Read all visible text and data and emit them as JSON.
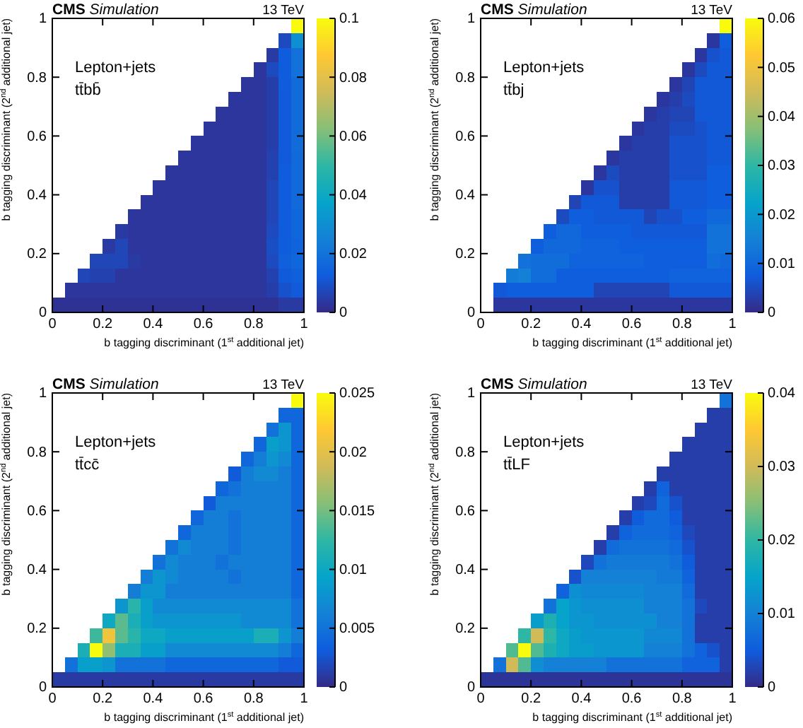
{
  "chart_data": [
    {
      "type": "heatmap",
      "title": "CMS Simulation",
      "annotations": [
        "13 TeV",
        "Lepton+jets",
        "tt̄bb̄"
      ],
      "xlabel": "b tagging discriminant (1$^{st}$ additional jet)",
      "ylabel": "b tagging discriminant (2$^{nd}$ additional jet)",
      "xlim": [
        0,
        1
      ],
      "ylim": [
        0,
        1
      ],
      "xticks": [
        0,
        0.2,
        0.4,
        0.6,
        0.8,
        1
      ],
      "yticks": [
        0,
        0.2,
        0.4,
        0.6,
        0.8,
        1
      ],
      "clim": [
        0,
        0.1
      ],
      "cticks": [
        0,
        0.02,
        0.04,
        0.06,
        0.08,
        0.1
      ],
      "cells": [
        [
          null,
          null,
          null,
          null,
          null,
          null,
          null,
          null,
          null,
          null,
          null,
          null,
          null,
          null,
          null,
          null,
          null,
          null,
          null,
          0.1
        ],
        [
          null,
          null,
          null,
          null,
          null,
          null,
          null,
          null,
          null,
          null,
          null,
          null,
          null,
          null,
          null,
          null,
          null,
          null,
          0.008,
          0.03
        ],
        [
          null,
          null,
          null,
          null,
          null,
          null,
          null,
          null,
          null,
          null,
          null,
          null,
          null,
          null,
          null,
          null,
          null,
          0.004,
          0.013,
          0.02
        ],
        [
          null,
          null,
          null,
          null,
          null,
          null,
          null,
          null,
          null,
          null,
          null,
          null,
          null,
          null,
          null,
          null,
          0.003,
          0.008,
          0.013,
          0.02
        ],
        [
          null,
          null,
          null,
          null,
          null,
          null,
          null,
          null,
          null,
          null,
          null,
          null,
          null,
          null,
          null,
          0.003,
          0.003,
          0.005,
          0.013,
          0.018
        ],
        [
          null,
          null,
          null,
          null,
          null,
          null,
          null,
          null,
          null,
          null,
          null,
          null,
          null,
          null,
          0.003,
          0.003,
          0.003,
          0.005,
          0.012,
          0.018
        ],
        [
          null,
          null,
          null,
          null,
          null,
          null,
          null,
          null,
          null,
          null,
          null,
          null,
          null,
          0.003,
          0.003,
          0.003,
          0.003,
          0.005,
          0.012,
          0.018
        ],
        [
          null,
          null,
          null,
          null,
          null,
          null,
          null,
          null,
          null,
          null,
          null,
          null,
          0.003,
          0.003,
          0.003,
          0.003,
          0.003,
          0.005,
          0.012,
          0.018
        ],
        [
          null,
          null,
          null,
          null,
          null,
          null,
          null,
          null,
          null,
          null,
          null,
          0.003,
          0.003,
          0.003,
          0.003,
          0.003,
          0.003,
          0.005,
          0.012,
          0.018
        ],
        [
          null,
          null,
          null,
          null,
          null,
          null,
          null,
          null,
          null,
          null,
          0.003,
          0.003,
          0.003,
          0.003,
          0.003,
          0.003,
          0.003,
          0.006,
          0.012,
          0.017
        ],
        [
          null,
          null,
          null,
          null,
          null,
          null,
          null,
          null,
          null,
          0.003,
          0.003,
          0.003,
          0.003,
          0.003,
          0.003,
          0.003,
          0.003,
          0.006,
          0.013,
          0.017
        ],
        [
          null,
          null,
          null,
          null,
          null,
          null,
          null,
          null,
          0.003,
          0.003,
          0.003,
          0.003,
          0.003,
          0.003,
          0.003,
          0.003,
          0.003,
          0.007,
          0.013,
          0.017
        ],
        [
          null,
          null,
          null,
          null,
          null,
          null,
          null,
          0.003,
          0.003,
          0.003,
          0.003,
          0.003,
          0.003,
          0.003,
          0.003,
          0.003,
          0.003,
          0.007,
          0.013,
          0.017
        ],
        [
          null,
          null,
          null,
          null,
          null,
          null,
          0.003,
          0.003,
          0.003,
          0.003,
          0.003,
          0.003,
          0.003,
          0.003,
          0.003,
          0.003,
          0.003,
          0.007,
          0.013,
          0.016
        ],
        [
          null,
          null,
          null,
          null,
          null,
          0.004,
          0.003,
          0.003,
          0.003,
          0.003,
          0.003,
          0.003,
          0.003,
          0.003,
          0.003,
          0.003,
          0.003,
          0.008,
          0.013,
          0.016
        ],
        [
          null,
          null,
          null,
          null,
          0.004,
          0.007,
          0.003,
          0.003,
          0.003,
          0.003,
          0.003,
          0.003,
          0.003,
          0.003,
          0.003,
          0.003,
          0.003,
          0.009,
          0.013,
          0.015
        ],
        [
          null,
          null,
          null,
          0.007,
          0.007,
          0.007,
          0.004,
          0.003,
          0.003,
          0.003,
          0.003,
          0.003,
          0.003,
          0.003,
          0.003,
          0.003,
          0.003,
          0.008,
          0.014,
          0.016
        ],
        [
          null,
          null,
          0.007,
          0.006,
          0.006,
          0.003,
          0.003,
          0.003,
          0.003,
          0.003,
          0.003,
          0.003,
          0.003,
          0.003,
          0.003,
          0.003,
          0.003,
          0.006,
          0.012,
          0.014
        ],
        [
          null,
          0.003,
          0.003,
          0.003,
          0.003,
          0.003,
          0.003,
          0.003,
          0.003,
          0.003,
          0.003,
          0.003,
          0.003,
          0.003,
          0.003,
          0.003,
          0.003,
          0.005,
          0.01,
          0.012
        ],
        [
          0.002,
          0.002,
          0.002,
          0.002,
          0.002,
          0.002,
          0.002,
          0.002,
          0.002,
          0.002,
          0.002,
          0.002,
          0.002,
          0.002,
          0.002,
          0.002,
          0.002,
          0.002,
          0.004,
          0.004
        ]
      ]
    },
    {
      "type": "heatmap",
      "title": "CMS Simulation",
      "annotations": [
        "13 TeV",
        "Lepton+jets",
        "tt̄bj"
      ],
      "xlabel": "b tagging discriminant (1$^{st}$ additional jet)",
      "ylabel": "b tagging discriminant (2$^{nd}$ additional jet)",
      "xlim": [
        0,
        1
      ],
      "ylim": [
        0,
        1
      ],
      "xticks": [
        0,
        0.2,
        0.4,
        0.6,
        0.8,
        1
      ],
      "yticks": [
        0,
        0.2,
        0.4,
        0.6,
        0.8,
        1
      ],
      "clim": [
        0,
        0.06
      ],
      "cticks": [
        0,
        0.01,
        0.02,
        0.03,
        0.04,
        0.05,
        0.06
      ],
      "cells": [
        [
          null,
          null,
          null,
          null,
          null,
          null,
          null,
          null,
          null,
          null,
          null,
          null,
          null,
          null,
          null,
          null,
          null,
          null,
          null,
          0.06
        ],
        [
          null,
          null,
          null,
          null,
          null,
          null,
          null,
          null,
          null,
          null,
          null,
          null,
          null,
          null,
          null,
          null,
          null,
          null,
          0.002,
          0.008
        ],
        [
          null,
          null,
          null,
          null,
          null,
          null,
          null,
          null,
          null,
          null,
          null,
          null,
          null,
          null,
          null,
          null,
          null,
          0.002,
          0.006,
          0.007
        ],
        [
          null,
          null,
          null,
          null,
          null,
          null,
          null,
          null,
          null,
          null,
          null,
          null,
          null,
          null,
          null,
          null,
          0.002,
          0.005,
          0.007,
          0.007
        ],
        [
          null,
          null,
          null,
          null,
          null,
          null,
          null,
          null,
          null,
          null,
          null,
          null,
          null,
          null,
          null,
          0.002,
          0.004,
          0.007,
          0.007,
          0.007
        ],
        [
          null,
          null,
          null,
          null,
          null,
          null,
          null,
          null,
          null,
          null,
          null,
          null,
          null,
          null,
          0.002,
          0.003,
          0.005,
          0.007,
          0.007,
          0.007
        ],
        [
          null,
          null,
          null,
          null,
          null,
          null,
          null,
          null,
          null,
          null,
          null,
          null,
          null,
          0.002,
          0.003,
          0.004,
          0.004,
          0.007,
          0.007,
          0.007
        ],
        [
          null,
          null,
          null,
          null,
          null,
          null,
          null,
          null,
          null,
          null,
          null,
          null,
          0.002,
          0.003,
          0.003,
          0.005,
          0.005,
          0.006,
          0.007,
          0.007
        ],
        [
          null,
          null,
          null,
          null,
          null,
          null,
          null,
          null,
          null,
          null,
          null,
          0.002,
          0.003,
          0.003,
          0.003,
          0.006,
          0.006,
          0.006,
          0.007,
          0.007
        ],
        [
          null,
          null,
          null,
          null,
          null,
          null,
          null,
          null,
          null,
          null,
          0.002,
          0.003,
          0.003,
          0.003,
          0.003,
          0.006,
          0.006,
          0.006,
          0.007,
          0.007
        ],
        [
          null,
          null,
          null,
          null,
          null,
          null,
          null,
          null,
          null,
          0.002,
          0.005,
          0.003,
          0.003,
          0.003,
          0.003,
          0.006,
          0.006,
          0.006,
          0.008,
          0.008
        ],
        [
          null,
          null,
          null,
          null,
          null,
          null,
          null,
          null,
          0.002,
          0.006,
          0.006,
          0.003,
          0.003,
          0.003,
          0.003,
          0.007,
          0.007,
          0.007,
          0.008,
          0.008
        ],
        [
          null,
          null,
          null,
          null,
          null,
          null,
          null,
          0.004,
          0.007,
          0.007,
          0.007,
          0.003,
          0.003,
          0.003,
          0.003,
          0.007,
          0.007,
          0.007,
          0.008,
          0.008
        ],
        [
          null,
          null,
          null,
          null,
          null,
          null,
          0.005,
          0.008,
          0.008,
          0.007,
          0.007,
          0.007,
          0.007,
          0.004,
          0.006,
          0.006,
          0.008,
          0.008,
          0.01,
          0.01
        ],
        [
          null,
          null,
          null,
          null,
          null,
          0.008,
          0.01,
          0.01,
          0.008,
          0.008,
          0.008,
          0.008,
          0.007,
          0.007,
          0.007,
          0.007,
          0.007,
          0.007,
          0.012,
          0.012
        ],
        [
          null,
          null,
          null,
          null,
          0.008,
          0.01,
          0.01,
          0.01,
          0.009,
          0.009,
          0.009,
          0.008,
          0.008,
          0.008,
          0.008,
          0.008,
          0.008,
          0.008,
          0.012,
          0.012
        ],
        [
          null,
          null,
          null,
          0.012,
          0.011,
          0.011,
          0.011,
          0.009,
          0.009,
          0.009,
          0.009,
          0.009,
          0.009,
          0.008,
          0.008,
          0.008,
          0.008,
          0.008,
          0.011,
          0.01
        ],
        [
          null,
          null,
          0.014,
          0.015,
          0.011,
          0.011,
          0.008,
          0.008,
          0.008,
          0.008,
          0.008,
          0.008,
          0.008,
          0.008,
          0.008,
          0.009,
          0.009,
          0.009,
          0.009,
          0.009
        ],
        [
          null,
          0.007,
          0.008,
          0.008,
          0.008,
          0.008,
          0.008,
          0.008,
          0.008,
          0.004,
          0.004,
          0.004,
          0.004,
          0.004,
          0.004,
          0.007,
          0.007,
          0.007,
          0.007,
          0.007
        ],
        [
          null,
          0.002,
          0.002,
          0.002,
          0.002,
          0.002,
          0.002,
          0.002,
          0.002,
          0.002,
          0.002,
          0.002,
          0.002,
          0.002,
          0.002,
          0.002,
          0.002,
          0.002,
          0.002,
          0.002
        ]
      ]
    },
    {
      "type": "heatmap",
      "title": "CMS Simulation",
      "annotations": [
        "13 TeV",
        "Lepton+jets",
        "tt̄cc̄"
      ],
      "xlabel": "b tagging discriminant (1$^{st}$ additional jet)",
      "ylabel": "b tagging discriminant (2$^{nd}$ additional jet)",
      "xlim": [
        0,
        1
      ],
      "ylim": [
        0,
        1
      ],
      "xticks": [
        0,
        0.2,
        0.4,
        0.6,
        0.8,
        1
      ],
      "yticks": [
        0,
        0.2,
        0.4,
        0.6,
        0.8,
        1
      ],
      "clim": [
        0,
        0.025
      ],
      "cticks": [
        0,
        0.005,
        0.01,
        0.015,
        0.02,
        0.025
      ],
      "cells": [
        [
          null,
          null,
          null,
          null,
          null,
          null,
          null,
          null,
          null,
          null,
          null,
          null,
          null,
          null,
          null,
          null,
          null,
          null,
          null,
          0.025
        ],
        [
          null,
          null,
          null,
          null,
          null,
          null,
          null,
          null,
          null,
          null,
          null,
          null,
          null,
          null,
          null,
          null,
          null,
          null,
          0.004,
          0.004
        ],
        [
          null,
          null,
          null,
          null,
          null,
          null,
          null,
          null,
          null,
          null,
          null,
          null,
          null,
          null,
          null,
          null,
          null,
          0.005,
          0.008,
          0.004
        ],
        [
          null,
          null,
          null,
          null,
          null,
          null,
          null,
          null,
          null,
          null,
          null,
          null,
          null,
          null,
          null,
          null,
          0.004,
          0.009,
          0.008,
          0.004
        ],
        [
          null,
          null,
          null,
          null,
          null,
          null,
          null,
          null,
          null,
          null,
          null,
          null,
          null,
          null,
          null,
          0.004,
          0.006,
          0.008,
          0.007,
          0.004
        ],
        [
          null,
          null,
          null,
          null,
          null,
          null,
          null,
          null,
          null,
          null,
          null,
          null,
          null,
          null,
          0.003,
          0.006,
          0.007,
          0.007,
          0.006,
          0.004
        ],
        [
          null,
          null,
          null,
          null,
          null,
          null,
          null,
          null,
          null,
          null,
          null,
          null,
          null,
          0.004,
          0.005,
          0.006,
          0.006,
          0.006,
          0.006,
          0.004
        ],
        [
          null,
          null,
          null,
          null,
          null,
          null,
          null,
          null,
          null,
          null,
          null,
          null,
          0.003,
          0.006,
          0.006,
          0.006,
          0.006,
          0.006,
          0.006,
          0.004
        ],
        [
          null,
          null,
          null,
          null,
          null,
          null,
          null,
          null,
          null,
          null,
          null,
          0.004,
          0.006,
          0.006,
          0.005,
          0.006,
          0.006,
          0.006,
          0.006,
          0.004
        ],
        [
          null,
          null,
          null,
          null,
          null,
          null,
          null,
          null,
          null,
          null,
          0.004,
          0.006,
          0.006,
          0.006,
          0.005,
          0.006,
          0.006,
          0.006,
          0.006,
          0.004
        ],
        [
          null,
          null,
          null,
          null,
          null,
          null,
          null,
          null,
          null,
          0.005,
          0.007,
          0.006,
          0.006,
          0.006,
          0.005,
          0.006,
          0.006,
          0.006,
          0.006,
          0.004
        ],
        [
          null,
          null,
          null,
          null,
          null,
          null,
          null,
          null,
          0.005,
          0.007,
          0.006,
          0.006,
          0.006,
          0.005,
          0.006,
          0.006,
          0.006,
          0.006,
          0.006,
          0.004
        ],
        [
          null,
          null,
          null,
          null,
          null,
          null,
          null,
          0.006,
          0.008,
          0.007,
          0.006,
          0.006,
          0.006,
          0.006,
          0.005,
          0.006,
          0.006,
          0.006,
          0.006,
          0.004
        ],
        [
          null,
          null,
          null,
          null,
          null,
          null,
          0.006,
          0.008,
          0.008,
          0.006,
          0.006,
          0.006,
          0.006,
          0.006,
          0.006,
          0.006,
          0.006,
          0.006,
          0.006,
          0.004
        ],
        [
          null,
          null,
          null,
          null,
          null,
          0.008,
          0.012,
          0.009,
          0.007,
          0.007,
          0.007,
          0.007,
          0.007,
          0.007,
          0.007,
          0.007,
          0.007,
          0.007,
          0.007,
          0.005
        ],
        [
          null,
          null,
          null,
          null,
          0.01,
          0.014,
          0.011,
          0.009,
          0.008,
          0.008,
          0.008,
          0.008,
          0.008,
          0.008,
          0.008,
          0.007,
          0.007,
          0.007,
          0.007,
          0.005
        ],
        [
          null,
          null,
          null,
          0.013,
          0.021,
          0.014,
          0.012,
          0.01,
          0.01,
          0.009,
          0.009,
          0.009,
          0.009,
          0.009,
          0.009,
          0.009,
          0.011,
          0.011,
          0.008,
          0.006
        ],
        [
          null,
          null,
          0.011,
          0.025,
          0.016,
          0.011,
          0.011,
          0.009,
          0.009,
          0.007,
          0.007,
          0.007,
          0.007,
          0.007,
          0.007,
          0.007,
          0.007,
          0.007,
          0.006,
          0.004
        ],
        [
          null,
          0.005,
          0.009,
          0.009,
          0.008,
          0.005,
          0.005,
          0.005,
          0.005,
          0.004,
          0.004,
          0.004,
          0.004,
          0.004,
          0.004,
          0.004,
          0.004,
          0.004,
          0.003,
          0.003
        ],
        [
          0.001,
          0.001,
          0.001,
          0.001,
          0.001,
          0.001,
          0.001,
          0.001,
          0.001,
          0.001,
          0.001,
          0.001,
          0.001,
          0.001,
          0.001,
          0.001,
          0.001,
          0.001,
          0.001,
          0.001
        ]
      ]
    },
    {
      "type": "heatmap",
      "title": "CMS Simulation",
      "annotations": [
        "13 TeV",
        "Lepton+jets",
        "tt̄LF"
      ],
      "xlabel": "b tagging discriminant (1$^{st}$ additional jet)",
      "ylabel": "b tagging discriminant (2$^{nd}$ additional jet)",
      "xlim": [
        0,
        1
      ],
      "ylim": [
        0,
        1
      ],
      "xticks": [
        0,
        0.2,
        0.4,
        0.6,
        0.8,
        1
      ],
      "yticks": [
        0,
        0.2,
        0.4,
        0.6,
        0.8,
        1
      ],
      "clim": [
        0,
        0.04
      ],
      "cticks": [
        0,
        0.01,
        0.02,
        0.03,
        0.04
      ],
      "cells": [
        [
          null,
          null,
          null,
          null,
          null,
          null,
          null,
          null,
          null,
          null,
          null,
          null,
          null,
          null,
          null,
          null,
          null,
          null,
          null,
          0.008
        ],
        [
          null,
          null,
          null,
          null,
          null,
          null,
          null,
          null,
          null,
          null,
          null,
          null,
          null,
          null,
          null,
          null,
          null,
          null,
          0.002,
          0.002
        ],
        [
          null,
          null,
          null,
          null,
          null,
          null,
          null,
          null,
          null,
          null,
          null,
          null,
          null,
          null,
          null,
          null,
          null,
          0.002,
          0.002,
          0.002
        ],
        [
          null,
          null,
          null,
          null,
          null,
          null,
          null,
          null,
          null,
          null,
          null,
          null,
          null,
          null,
          null,
          null,
          0.002,
          0.002,
          0.002,
          0.002
        ],
        [
          null,
          null,
          null,
          null,
          null,
          null,
          null,
          null,
          null,
          null,
          null,
          null,
          null,
          null,
          null,
          0.002,
          0.002,
          0.002,
          0.002,
          0.002
        ],
        [
          null,
          null,
          null,
          null,
          null,
          null,
          null,
          null,
          null,
          null,
          null,
          null,
          null,
          null,
          0.002,
          0.002,
          0.002,
          0.002,
          0.002,
          0.002
        ],
        [
          null,
          null,
          null,
          null,
          null,
          null,
          null,
          null,
          null,
          null,
          null,
          null,
          null,
          0.002,
          0.006,
          0.002,
          0.002,
          0.002,
          0.002,
          0.002
        ],
        [
          null,
          null,
          null,
          null,
          null,
          null,
          null,
          null,
          null,
          null,
          null,
          null,
          0.002,
          0.003,
          0.007,
          0.004,
          0.002,
          0.002,
          0.002,
          0.002
        ],
        [
          null,
          null,
          null,
          null,
          null,
          null,
          null,
          null,
          null,
          null,
          null,
          0.002,
          0.005,
          0.007,
          0.007,
          0.005,
          0.002,
          0.002,
          0.002,
          0.002
        ],
        [
          null,
          null,
          null,
          null,
          null,
          null,
          null,
          null,
          null,
          null,
          0.002,
          0.006,
          0.007,
          0.007,
          0.007,
          0.006,
          0.003,
          0.002,
          0.002,
          0.002
        ],
        [
          null,
          null,
          null,
          null,
          null,
          null,
          null,
          null,
          null,
          0.002,
          0.007,
          0.008,
          0.008,
          0.008,
          0.008,
          0.007,
          0.004,
          0.002,
          0.002,
          0.002
        ],
        [
          null,
          null,
          null,
          null,
          null,
          null,
          null,
          null,
          0.003,
          0.008,
          0.009,
          0.009,
          0.009,
          0.009,
          0.009,
          0.008,
          0.005,
          0.002,
          0.002,
          0.002
        ],
        [
          null,
          null,
          null,
          null,
          null,
          null,
          null,
          0.004,
          0.01,
          0.01,
          0.01,
          0.01,
          0.01,
          0.01,
          0.009,
          0.009,
          0.006,
          0.002,
          0.002,
          0.002
        ],
        [
          null,
          null,
          null,
          null,
          null,
          null,
          0.006,
          0.012,
          0.011,
          0.011,
          0.011,
          0.011,
          0.011,
          0.01,
          0.01,
          0.01,
          0.007,
          0.002,
          0.002,
          0.002
        ],
        [
          null,
          null,
          null,
          null,
          null,
          0.008,
          0.015,
          0.013,
          0.012,
          0.012,
          0.012,
          0.012,
          0.012,
          0.01,
          0.01,
          0.01,
          0.008,
          0.003,
          0.002,
          0.002
        ],
        [
          null,
          null,
          null,
          null,
          0.014,
          0.018,
          0.015,
          0.013,
          0.013,
          0.012,
          0.012,
          0.012,
          0.012,
          0.012,
          0.01,
          0.01,
          0.008,
          0.002,
          0.002,
          0.002
        ],
        [
          null,
          null,
          null,
          0.02,
          0.03,
          0.02,
          0.016,
          0.014,
          0.013,
          0.013,
          0.013,
          0.013,
          0.013,
          0.011,
          0.011,
          0.011,
          0.008,
          0.002,
          0.002,
          0.002
        ],
        [
          null,
          null,
          0.022,
          0.04,
          0.022,
          0.018,
          0.016,
          0.014,
          0.014,
          0.013,
          0.013,
          0.013,
          0.013,
          0.01,
          0.01,
          0.01,
          0.008,
          0.006,
          0.004,
          0.002
        ],
        [
          null,
          0.008,
          0.03,
          0.022,
          0.012,
          0.01,
          0.01,
          0.01,
          0.01,
          0.01,
          0.008,
          0.008,
          0.008,
          0.008,
          0.008,
          0.008,
          0.006,
          0.006,
          0.006,
          0.002
        ],
        [
          0.001,
          0.001,
          0.001,
          0.001,
          0.001,
          0.001,
          0.001,
          0.001,
          0.001,
          0.001,
          0.001,
          0.001,
          0.001,
          0.001,
          0.001,
          0.001,
          0.001,
          0.001,
          0.001,
          0.001
        ]
      ]
    }
  ]
}
